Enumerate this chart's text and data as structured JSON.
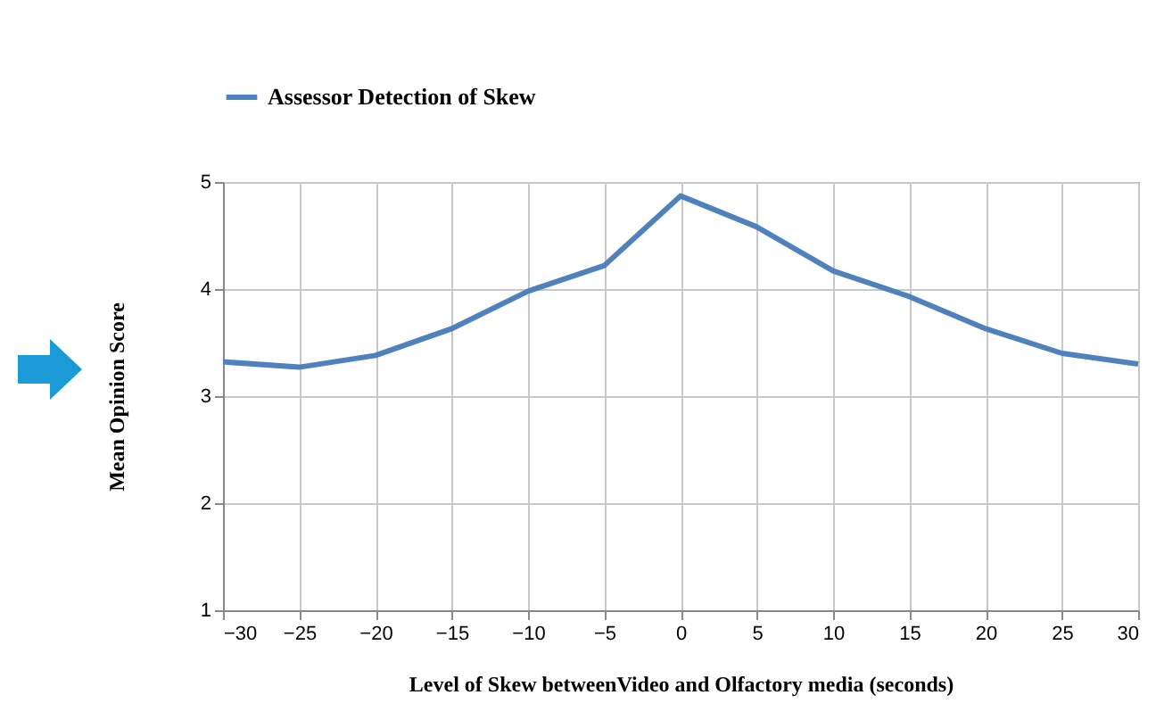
{
  "chart_data": {
    "type": "line",
    "xlabel": "Level of Skew betweenVideo and Olfactory media (seconds)",
    "ylabel": "Mean Opinion Score",
    "x": [
      -30,
      -25,
      -20,
      -15,
      -10,
      -5,
      0,
      5,
      10,
      15,
      20,
      25,
      30
    ],
    "series": [
      {
        "name": "Assessor Detection of Skew",
        "color": "#4f81bd",
        "values": [
          3.32,
          3.27,
          3.38,
          3.63,
          3.98,
          4.22,
          4.87,
          4.58,
          4.17,
          3.93,
          3.63,
          3.4,
          3.3
        ]
      }
    ],
    "xlim": [
      -30,
      30
    ],
    "xticks": [
      -30,
      -25,
      -20,
      -15,
      -10,
      -5,
      0,
      5,
      10,
      15,
      20,
      25,
      30
    ],
    "ylim": [
      1,
      5
    ],
    "yticks": [
      1,
      2,
      3,
      4,
      5
    ],
    "grid": true,
    "legend": "top",
    "marker": "none",
    "line_style": "solid"
  }
}
